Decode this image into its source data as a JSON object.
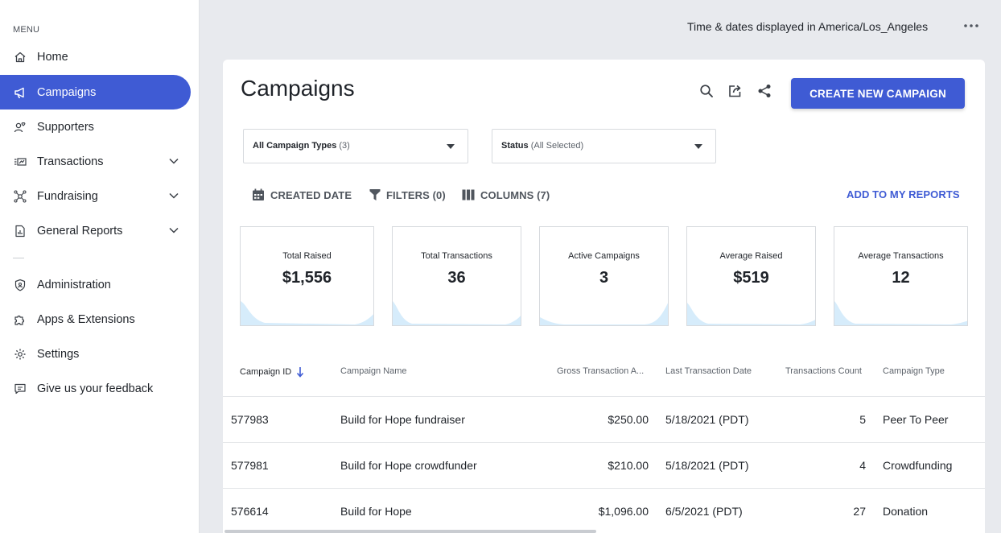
{
  "sidebar": {
    "menu_caption": "MENU",
    "items": [
      {
        "label": "Home",
        "icon": "home-icon"
      },
      {
        "label": "Campaigns",
        "icon": "megaphone-icon",
        "active": true
      },
      {
        "label": "Supporters",
        "icon": "supporters-icon"
      },
      {
        "label": "Transactions",
        "icon": "transactions-icon",
        "expandable": true
      },
      {
        "label": "Fundraising",
        "icon": "fundraising-icon",
        "expandable": true
      },
      {
        "label": "General Reports",
        "icon": "reports-icon",
        "expandable": true
      },
      {
        "label": "Administration",
        "icon": "shield-icon"
      },
      {
        "label": "Apps & Extensions",
        "icon": "puzzle-icon"
      },
      {
        "label": "Settings",
        "icon": "gear-icon"
      },
      {
        "label": "Give us your feedback",
        "icon": "feedback-icon"
      }
    ]
  },
  "topbar": {
    "timezone_text": "Time & dates displayed in America/Los_Angeles",
    "more_icon": "more-horizontal-icon"
  },
  "header": {
    "title": "Campaigns",
    "create_button": "CREATE NEW CAMPAIGN"
  },
  "filters": {
    "type_select": {
      "label": "All Campaign Types",
      "count": "(3)"
    },
    "status_select": {
      "label": "Status",
      "value": "(All Selected)"
    },
    "created_date": "CREATED DATE",
    "filters": "FILTERS (0)",
    "columns": "COLUMNS (7)",
    "add_reports": "ADD TO MY REPORTS"
  },
  "stats": [
    {
      "label": "Total Raised",
      "value": "$1,556"
    },
    {
      "label": "Total Transactions",
      "value": "36"
    },
    {
      "label": "Active Campaigns",
      "value": "3"
    },
    {
      "label": "Average Raised",
      "value": "$519"
    },
    {
      "label": "Average Transactions",
      "value": "12"
    }
  ],
  "table": {
    "headers": [
      "Campaign ID",
      "Campaign Name",
      "Gross Transaction A...",
      "Last Transaction Date",
      "Transactions Count",
      "Campaign Type"
    ],
    "rows": [
      {
        "id": "577983",
        "name": "Build for Hope fundraiser",
        "gross": "$250.00",
        "date": "5/18/2021 (PDT)",
        "count": "5",
        "type": "Peer To Peer"
      },
      {
        "id": "577981",
        "name": "Build for Hope crowdfunder",
        "gross": "$210.00",
        "date": "5/18/2021 (PDT)",
        "count": "4",
        "type": "Crowdfunding"
      },
      {
        "id": "576614",
        "name": "Build for Hope",
        "gross": "$1,096.00",
        "date": "6/5/2021 (PDT)",
        "count": "27",
        "type": "Donation"
      }
    ]
  },
  "colors": {
    "accent": "#3f5bd4",
    "background": "#e8eaee",
    "sparkline_fill": "#d6ecfb"
  }
}
